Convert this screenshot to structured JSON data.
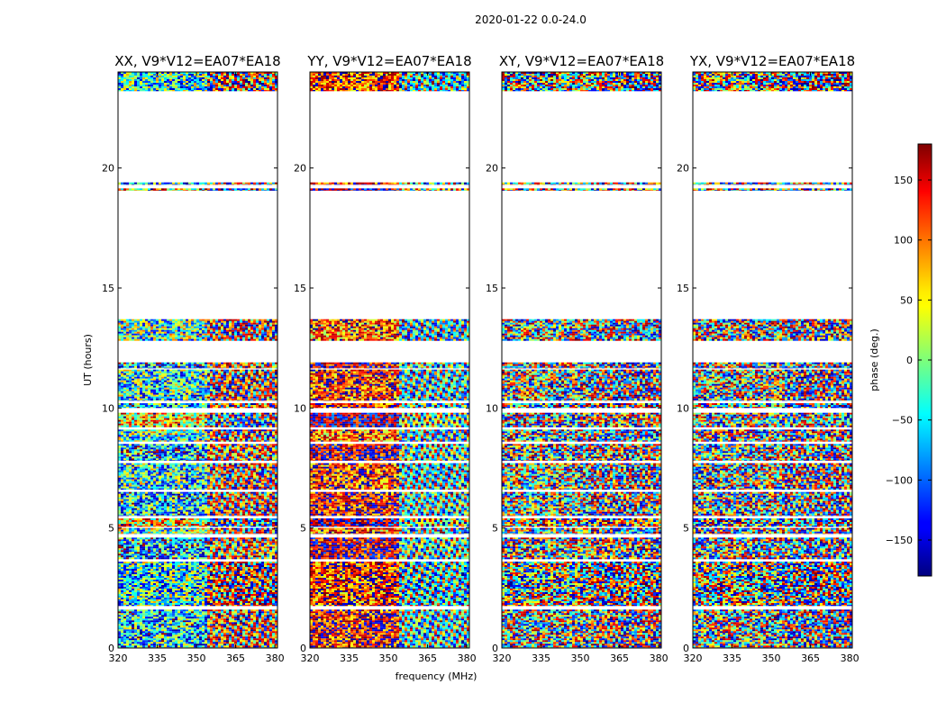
{
  "chart_data": {
    "type": "heatmap",
    "suptitle": "2020-01-22 0.0-24.0",
    "xlabel": "frequency (MHz)",
    "ylabel": "UT (hours)",
    "xlim": [
      320,
      381
    ],
    "ylim": [
      0,
      24
    ],
    "x_ticks": [
      320,
      335,
      350,
      365,
      380
    ],
    "x_tick_labels": [
      "320",
      "335",
      "350",
      "365",
      "380"
    ],
    "y_ticks": [
      0,
      5,
      10,
      15,
      20
    ],
    "y_tick_labels": [
      "0",
      "5",
      "10",
      "15",
      "20"
    ],
    "colorbar": {
      "label": "phase (deg.)",
      "colormap": "jet",
      "range": [
        -180,
        180
      ],
      "ticks": [
        150,
        100,
        50,
        0,
        -50,
        -100,
        -150
      ],
      "tick_labels": [
        "150",
        "100",
        "50",
        "0",
        "−50",
        "−100",
        "−150"
      ]
    },
    "time_segments_hours": [
      [
        0.0,
        1.6
      ],
      [
        1.75,
        3.6
      ],
      [
        3.7,
        4.6
      ],
      [
        4.75,
        5.0
      ],
      [
        5.05,
        5.4
      ],
      [
        5.5,
        6.5
      ],
      [
        6.6,
        7.7
      ],
      [
        7.8,
        8.5
      ],
      [
        8.6,
        9.1
      ],
      [
        9.2,
        9.8
      ],
      [
        10.0,
        10.2
      ],
      [
        10.3,
        11.6
      ],
      [
        11.65,
        11.9
      ],
      [
        12.8,
        13.7
      ],
      [
        19.05,
        19.15
      ],
      [
        19.3,
        19.4
      ],
      [
        23.2,
        24.0
      ]
    ],
    "panels": [
      {
        "title": "XX, V9*V12=EA07*EA18",
        "phase_bias_deg": [
          -60,
          -40,
          -80,
          -20,
          60
        ],
        "phase_noise": 0.7
      },
      {
        "title": "YY, V9*V12=EA07*EA18",
        "phase_bias_deg": [
          140,
          120,
          160,
          100,
          -170
        ],
        "phase_noise": 0.55
      },
      {
        "title": "XY, V9*V12=EA07*EA18",
        "phase_bias_deg": [
          0,
          20,
          -30,
          60,
          -60
        ],
        "phase_noise": 1.0
      },
      {
        "title": "YX, V9*V12=EA07*EA18",
        "phase_bias_deg": [
          30,
          10,
          50,
          -20,
          70
        ],
        "phase_noise": 1.0
      }
    ]
  }
}
